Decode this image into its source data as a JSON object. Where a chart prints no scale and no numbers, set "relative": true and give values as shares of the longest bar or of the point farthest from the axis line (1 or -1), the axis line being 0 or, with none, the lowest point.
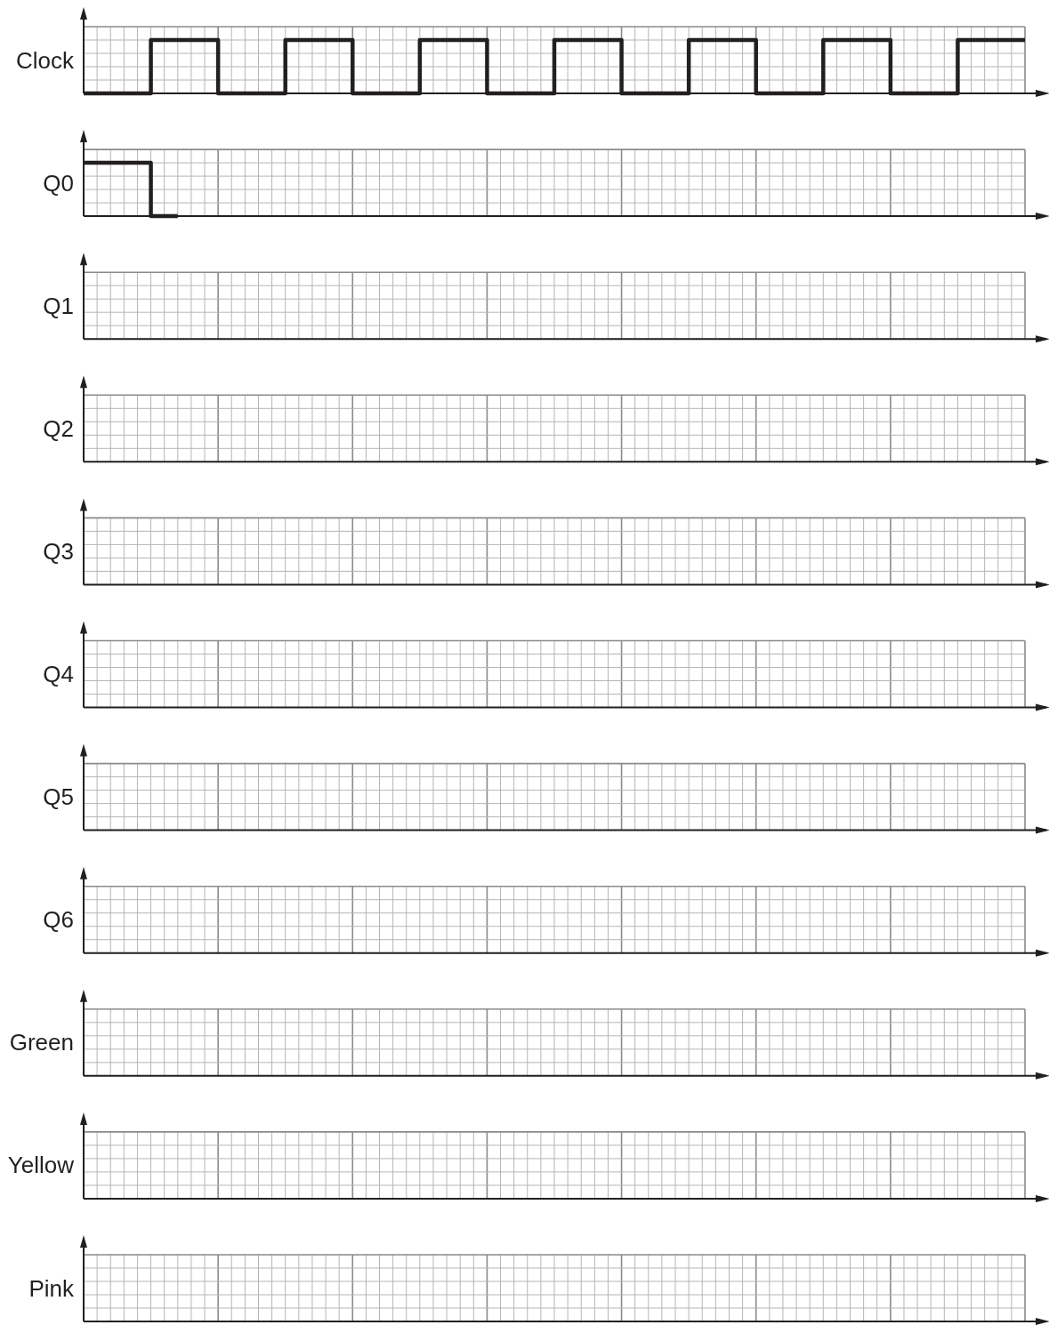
{
  "chart_data": [
    {
      "type": "step",
      "ylabel": "Clock",
      "relative": true,
      "grid": true,
      "categories": [
        null,
        null,
        null,
        null,
        null,
        null,
        null,
        null,
        null,
        null,
        null,
        null,
        null,
        null,
        null,
        null,
        null,
        null,
        null,
        null,
        null,
        null,
        null,
        null,
        null,
        null,
        null,
        null,
        null,
        null,
        null,
        null,
        null,
        null,
        null,
        null,
        null,
        null,
        null,
        null,
        null,
        null,
        null,
        null,
        null,
        null,
        null,
        null,
        null,
        null,
        null,
        null,
        null,
        null,
        null,
        null,
        null,
        null,
        null,
        null,
        null,
        null,
        null,
        null,
        null,
        null,
        null,
        null,
        null,
        null,
        null
      ],
      "series": [
        {
          "color": "#231f20",
          "values": [
            0,
            0,
            0,
            0,
            0,
            1,
            1,
            1,
            1,
            1,
            0,
            0,
            0,
            0,
            0,
            1,
            1,
            1,
            1,
            1,
            0,
            0,
            0,
            0,
            0,
            1,
            1,
            1,
            1,
            1,
            0,
            0,
            0,
            0,
            0,
            1,
            1,
            1,
            1,
            1,
            0,
            0,
            0,
            0,
            0,
            1,
            1,
            1,
            1,
            1,
            0,
            0,
            0,
            0,
            0,
            1,
            1,
            1,
            1,
            1,
            0,
            0,
            0,
            0,
            0,
            1,
            1,
            1,
            1,
            1,
            1
          ]
        }
      ]
    },
    {
      "type": "step",
      "ylabel": "Q0",
      "relative": true,
      "grid": true,
      "categories": [
        null,
        null,
        null,
        null,
        null,
        null,
        null,
        null,
        null,
        null,
        null,
        null,
        null,
        null,
        null,
        null,
        null,
        null,
        null,
        null,
        null,
        null,
        null,
        null,
        null,
        null,
        null,
        null,
        null,
        null,
        null,
        null,
        null,
        null,
        null,
        null,
        null,
        null,
        null,
        null,
        null,
        null,
        null,
        null,
        null,
        null,
        null,
        null,
        null,
        null,
        null,
        null,
        null,
        null,
        null,
        null,
        null,
        null,
        null,
        null,
        null,
        null,
        null,
        null,
        null,
        null,
        null,
        null,
        null,
        null,
        null
      ],
      "series": [
        {
          "color": "#231f20",
          "values": [
            1,
            1,
            1,
            1,
            1,
            0,
            0,
            0,
            null,
            null,
            null,
            null,
            null,
            null,
            null,
            null,
            null,
            null,
            null,
            null,
            null,
            null,
            null,
            null,
            null,
            null,
            null,
            null,
            null,
            null,
            null,
            null,
            null,
            null,
            null,
            null,
            null,
            null,
            null,
            null,
            null,
            null,
            null,
            null,
            null,
            null,
            null,
            null,
            null,
            null,
            null,
            null,
            null,
            null,
            null,
            null,
            null,
            null,
            null,
            null,
            null,
            null,
            null,
            null,
            null,
            null,
            null,
            null,
            null,
            null,
            null
          ]
        }
      ]
    },
    {
      "type": "other",
      "ylabel": "Q1"
    },
    {
      "type": "other",
      "ylabel": "Q2"
    },
    {
      "type": "other",
      "ylabel": "Q3"
    },
    {
      "type": "other",
      "ylabel": "Q4"
    },
    {
      "type": "other",
      "ylabel": "Q5"
    },
    {
      "type": "other",
      "ylabel": "Q6"
    },
    {
      "type": "other",
      "ylabel": "Green"
    },
    {
      "type": "other",
      "ylabel": "Yellow"
    },
    {
      "type": "other",
      "ylabel": "Pink"
    }
  ]
}
